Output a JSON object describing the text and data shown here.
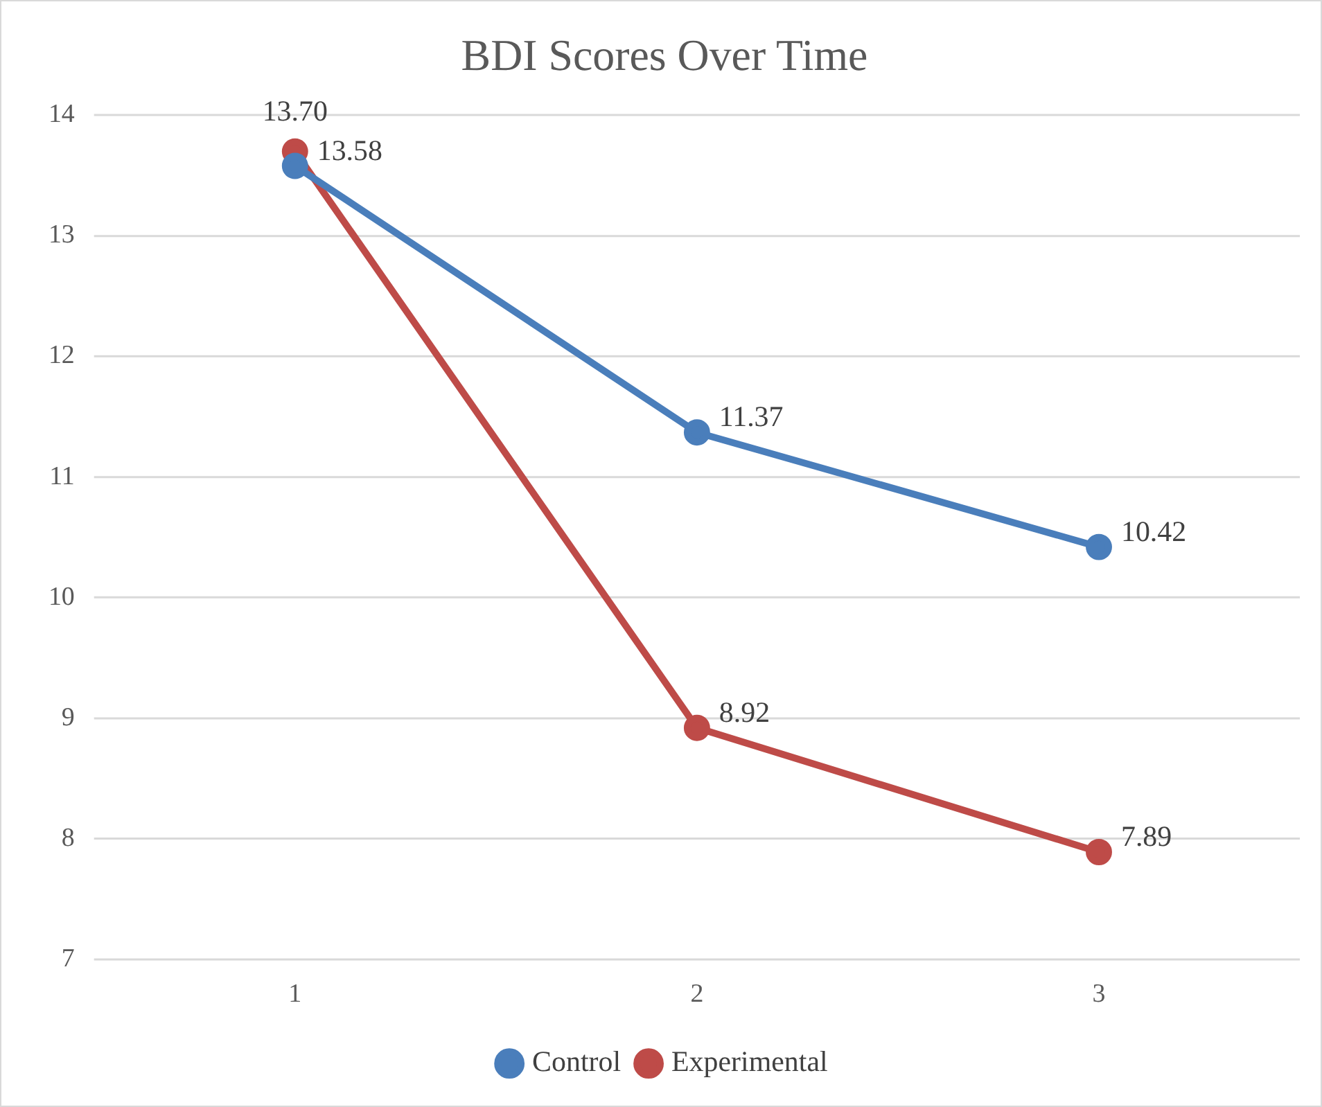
{
  "chart_data": {
    "type": "line",
    "title": "BDI Scores Over Time",
    "categories": [
      "1",
      "2",
      "3"
    ],
    "series": [
      {
        "name": "Control",
        "color": "#4a7ebb",
        "values": [
          13.58,
          11.37,
          10.42
        ],
        "value_labels": [
          "13.58",
          "11.37",
          "10.42"
        ]
      },
      {
        "name": "Experimental",
        "color": "#be4b48",
        "values": [
          13.7,
          8.92,
          7.89
        ],
        "value_labels": [
          "13.70",
          "8.92",
          "7.89"
        ]
      }
    ],
    "ylim": [
      7,
      14
    ],
    "yticks": [
      7,
      8,
      9,
      10,
      11,
      12,
      13,
      14
    ],
    "grid": "y",
    "legend": "bottom",
    "marker": "circle",
    "line_style": "solid"
  }
}
